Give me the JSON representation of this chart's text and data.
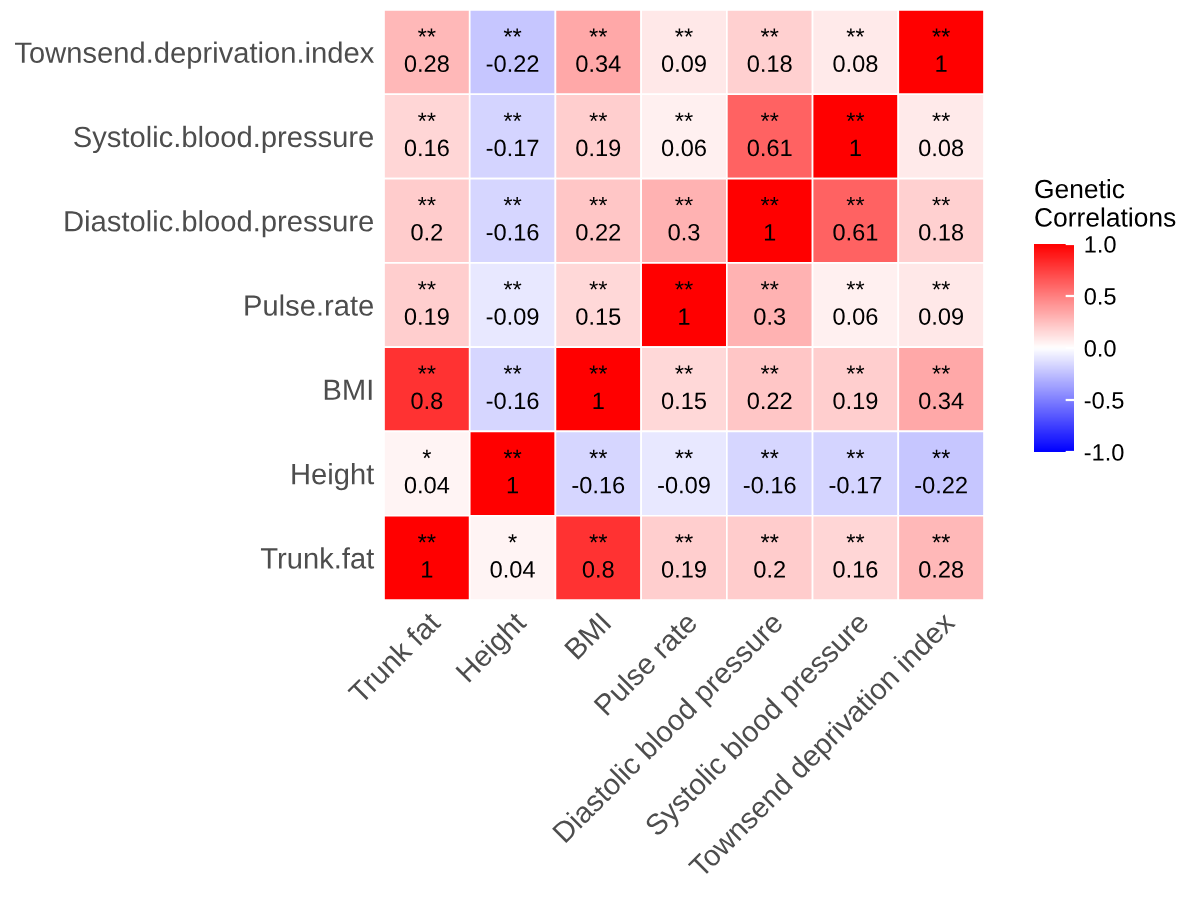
{
  "chart_data": {
    "type": "heatmap",
    "legend_title": "Genetic\nCorrelations",
    "categories": [
      "Trunk fat",
      "Height",
      "BMI",
      "Pulse rate",
      "Diastolic blood pressure",
      "Systolic blood pressure",
      "Townsend deprivation index"
    ],
    "y_categories": [
      "Townsend.deprivation.index",
      "Systolic.blood.pressure",
      "Diastolic.blood.pressure",
      "Pulse.rate",
      "BMI",
      "Height",
      "Trunk.fat"
    ],
    "cells": [
      [
        0.28,
        -0.22,
        0.34,
        0.09,
        0.18,
        0.08,
        1
      ],
      [
        0.16,
        -0.17,
        0.19,
        0.06,
        0.61,
        1,
        0.08
      ],
      [
        0.2,
        -0.16,
        0.22,
        0.3,
        1,
        0.61,
        0.18
      ],
      [
        0.19,
        -0.09,
        0.15,
        1,
        0.3,
        0.06,
        0.09
      ],
      [
        0.8,
        -0.16,
        1,
        0.15,
        0.22,
        0.19,
        0.34
      ],
      [
        0.04,
        1,
        -0.16,
        -0.09,
        -0.16,
        -0.17,
        -0.22
      ],
      [
        1,
        0.04,
        0.8,
        0.19,
        0.2,
        0.16,
        0.28
      ]
    ],
    "cell_labels": [
      [
        "**\n0.28",
        "**\n-0.22",
        "**\n0.34",
        "**\n0.09",
        "**\n0.18",
        "**\n0.08",
        "**\n1"
      ],
      [
        "**\n0.16",
        "**\n-0.17",
        "**\n0.19",
        "**\n0.06",
        "**\n0.61",
        "**\n1",
        "**\n0.08"
      ],
      [
        "**\n0.2",
        "**\n-0.16",
        "**\n0.22",
        "**\n0.3",
        "**\n1",
        "**\n0.61",
        "**\n0.18"
      ],
      [
        "**\n0.19",
        "**\n-0.09",
        "**\n0.15",
        "**\n1",
        "**\n0.3",
        "**\n0.06",
        "**\n0.09"
      ],
      [
        "**\n0.8",
        "**\n-0.16",
        "**\n1",
        "**\n0.15",
        "**\n0.22",
        "**\n0.19",
        "**\n0.34"
      ],
      [
        "*\n0.04",
        "**\n1",
        "**\n-0.16",
        "**\n-0.09",
        "**\n-0.16",
        "**\n-0.17",
        "**\n-0.22"
      ],
      [
        "**\n1",
        "*\n0.04",
        "**\n0.8",
        "**\n0.19",
        "**\n0.2",
        "**\n0.16",
        "**\n0.28"
      ]
    ],
    "clim": [
      -1,
      1
    ],
    "cticks": [
      {
        "value": -1,
        "label": "-1.0"
      },
      {
        "value": -0.5,
        "label": "-0.5"
      },
      {
        "value": 0,
        "label": "0.0"
      },
      {
        "value": 0.5,
        "label": "0.5"
      },
      {
        "value": 1,
        "label": "1.0"
      }
    ]
  }
}
